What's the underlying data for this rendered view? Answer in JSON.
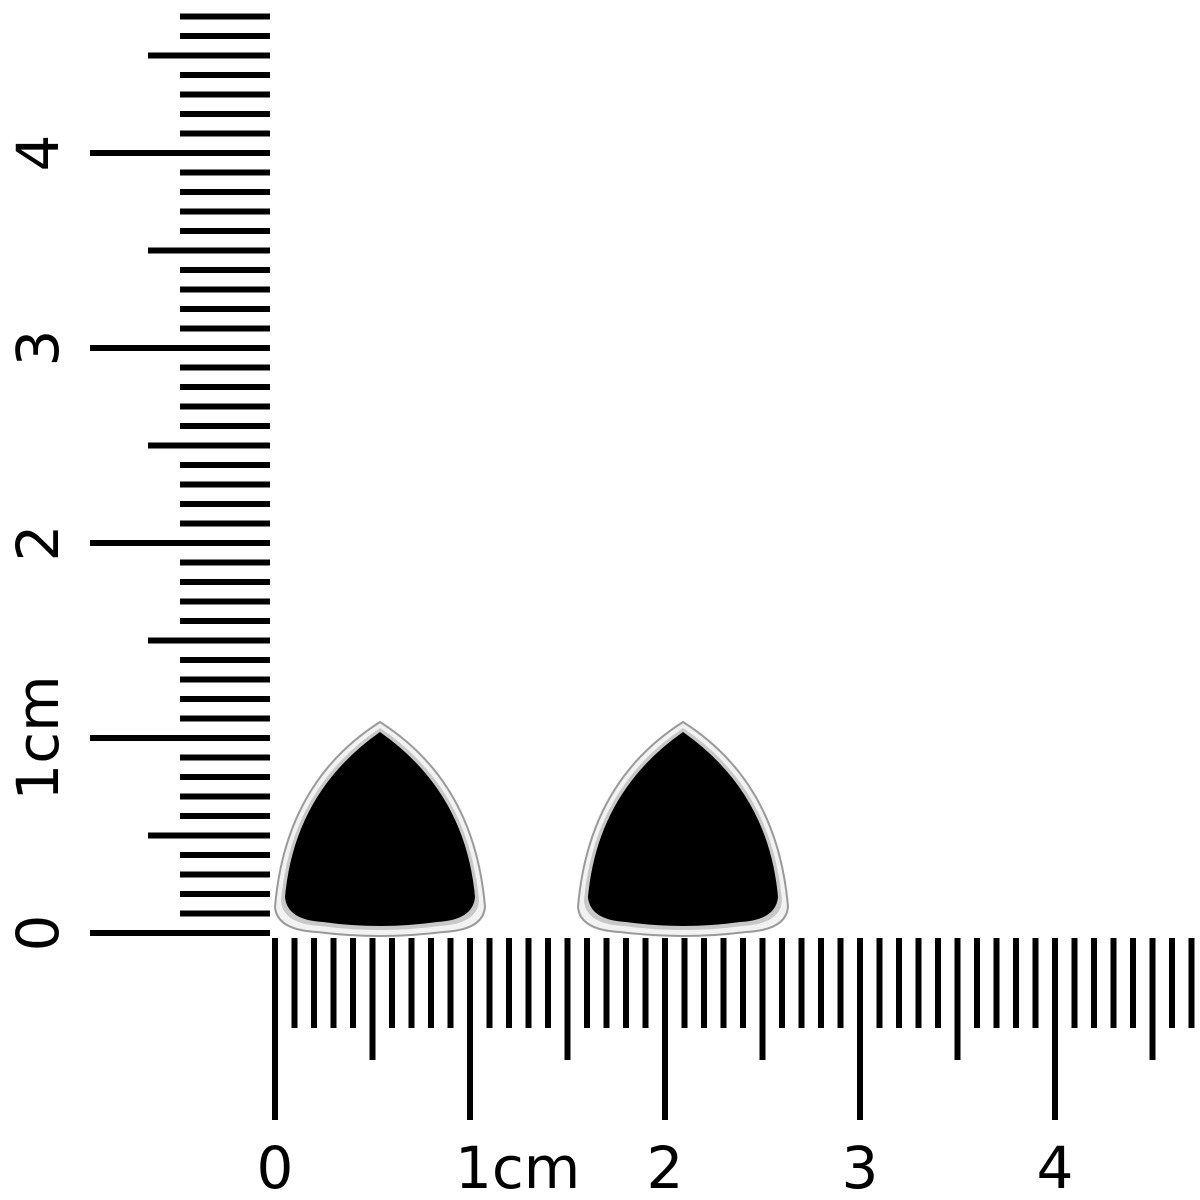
{
  "rulers": {
    "unit": "cm",
    "vertical_labels": [
      "0",
      "1cm",
      "2",
      "3",
      "4"
    ],
    "horizontal_labels": [
      "0",
      "1cm",
      "2",
      "3",
      "4"
    ],
    "tick_color": "#000000"
  },
  "product": {
    "items": [
      "earring-left",
      "earring-right"
    ],
    "stone_color": "#000000",
    "setting_color": "#c8c8c8"
  }
}
